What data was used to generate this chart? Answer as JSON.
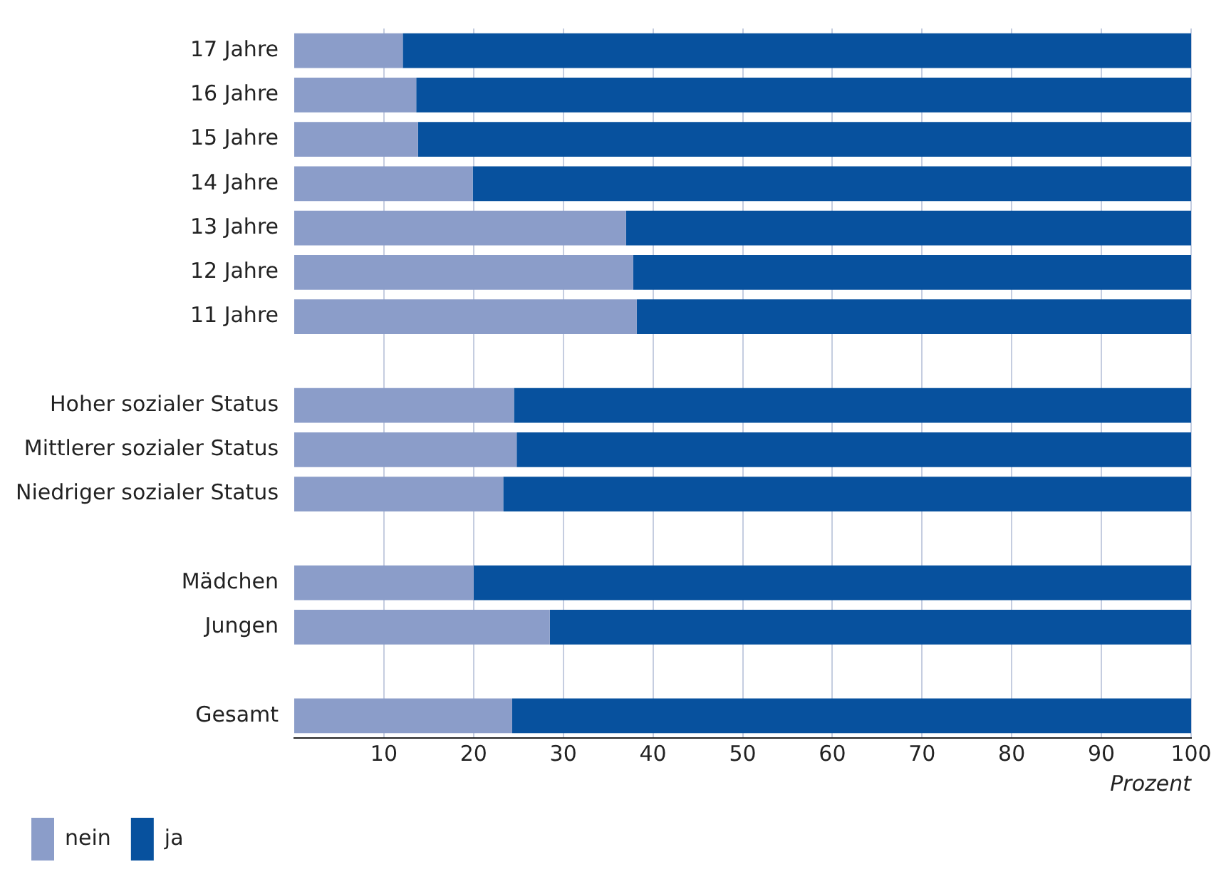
{
  "chart_data": {
    "type": "bar",
    "orientation": "horizontal",
    "stacked": true,
    "categories": [
      "17 Jahre",
      "16 Jahre",
      "15 Jahre",
      "14 Jahre",
      "13 Jahre",
      "12 Jahre",
      "11 Jahre",
      null,
      "Hoher sozialer Status",
      "Mittlerer sozialer Status",
      "Niedriger sozialer Status",
      null,
      "Mädchen",
      "Jungen",
      null,
      "Gesamt"
    ],
    "series": [
      {
        "name": "nein",
        "color": "#8b9dc9",
        "values": [
          12.1,
          13.6,
          13.8,
          19.9,
          37.0,
          37.8,
          38.2,
          null,
          24.5,
          24.8,
          23.3,
          null,
          20.0,
          28.5,
          null,
          24.3
        ]
      },
      {
        "name": "ja",
        "color": "#07519e",
        "values": [
          87.9,
          86.4,
          86.2,
          80.1,
          63.0,
          62.2,
          61.8,
          null,
          75.5,
          75.2,
          76.7,
          null,
          80.0,
          71.5,
          null,
          75.7
        ]
      }
    ],
    "xlabel": "Prozent",
    "xlim": [
      0,
      100
    ],
    "xticks": [
      10,
      20,
      30,
      40,
      50,
      60,
      70,
      80,
      90,
      100
    ],
    "grid": "x",
    "legend": "bottom left"
  }
}
